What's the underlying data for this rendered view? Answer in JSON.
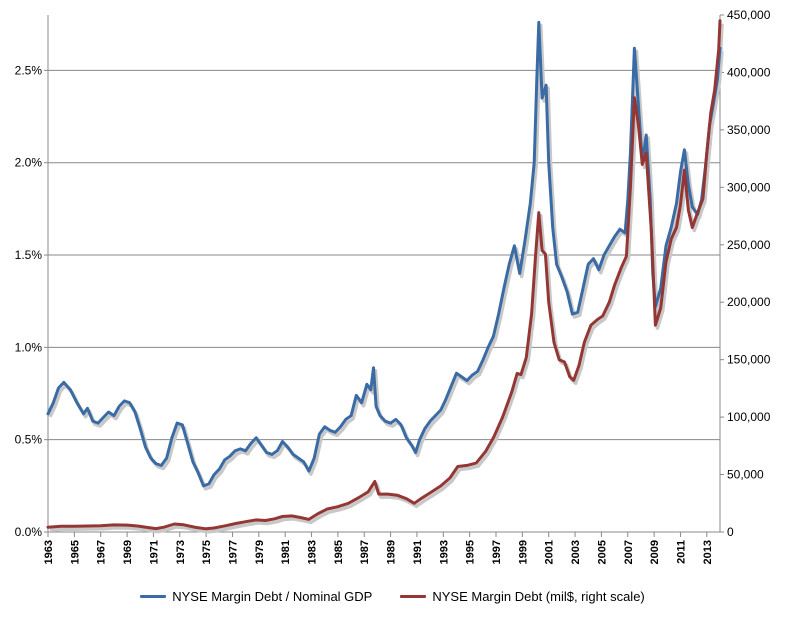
{
  "chart_data": {
    "type": "line",
    "title": "",
    "xlabel": "",
    "ylabel": "",
    "x_ticks": [
      "1963",
      "1965",
      "1967",
      "1969",
      "1971",
      "1973",
      "1975",
      "1977",
      "1979",
      "1981",
      "1983",
      "1985",
      "1987",
      "1989",
      "1991",
      "1993",
      "1995",
      "1997",
      "1999",
      "2001",
      "2003",
      "2005",
      "2007",
      "2009",
      "2011",
      "2013"
    ],
    "left_axis": {
      "ylim": [
        0,
        0.028
      ],
      "ticks": [
        0,
        0.005,
        0.01,
        0.015,
        0.02,
        0.025
      ],
      "tick_labels": [
        "0.0%",
        "0.5%",
        "1.0%",
        "1.5%",
        "2.0%",
        "2.5%"
      ]
    },
    "right_axis": {
      "ylim": [
        0,
        450000
      ],
      "ticks": [
        0,
        50000,
        100000,
        150000,
        200000,
        250000,
        300000,
        350000,
        400000,
        450000
      ],
      "tick_labels": [
        "0",
        "50,000",
        "100,000",
        "150,000",
        "200,000",
        "250,000",
        "300,000",
        "350,000",
        "400,000",
        "450,000"
      ]
    },
    "grid": true,
    "legend_position": "bottom",
    "series": [
      {
        "name": "NYSE Margin Debt / Nominal GDP",
        "axis": "left",
        "color": "#3A6BA5",
        "points": [
          [
            1963.0,
            0.0064
          ],
          [
            1963.4,
            0.007
          ],
          [
            1963.8,
            0.0078
          ],
          [
            1964.2,
            0.0081
          ],
          [
            1964.7,
            0.0077
          ],
          [
            1965.2,
            0.007
          ],
          [
            1965.7,
            0.0064
          ],
          [
            1966.0,
            0.0067
          ],
          [
            1966.4,
            0.006
          ],
          [
            1966.8,
            0.0059
          ],
          [
            1967.2,
            0.0062
          ],
          [
            1967.6,
            0.0065
          ],
          [
            1968.0,
            0.0063
          ],
          [
            1968.4,
            0.0068
          ],
          [
            1968.8,
            0.0071
          ],
          [
            1969.2,
            0.007
          ],
          [
            1969.6,
            0.0065
          ],
          [
            1970.0,
            0.0056
          ],
          [
            1970.4,
            0.0046
          ],
          [
            1970.8,
            0.004
          ],
          [
            1971.2,
            0.0037
          ],
          [
            1971.6,
            0.0036
          ],
          [
            1972.0,
            0.004
          ],
          [
            1972.4,
            0.0051
          ],
          [
            1972.8,
            0.0059
          ],
          [
            1973.2,
            0.0058
          ],
          [
            1973.6,
            0.0048
          ],
          [
            1974.0,
            0.0038
          ],
          [
            1974.4,
            0.0032
          ],
          [
            1974.8,
            0.0025
          ],
          [
            1975.2,
            0.0026
          ],
          [
            1975.6,
            0.0031
          ],
          [
            1976.0,
            0.0034
          ],
          [
            1976.4,
            0.0039
          ],
          [
            1976.8,
            0.0041
          ],
          [
            1977.2,
            0.0044
          ],
          [
            1977.6,
            0.0045
          ],
          [
            1978.0,
            0.0044
          ],
          [
            1978.4,
            0.0048
          ],
          [
            1978.8,
            0.0051
          ],
          [
            1979.2,
            0.0047
          ],
          [
            1979.6,
            0.0043
          ],
          [
            1980.0,
            0.0042
          ],
          [
            1980.4,
            0.0044
          ],
          [
            1980.8,
            0.0049
          ],
          [
            1981.2,
            0.0046
          ],
          [
            1981.6,
            0.0042
          ],
          [
            1982.0,
            0.004
          ],
          [
            1982.4,
            0.0038
          ],
          [
            1982.8,
            0.0033
          ],
          [
            1983.2,
            0.004
          ],
          [
            1983.6,
            0.0053
          ],
          [
            1984.0,
            0.0057
          ],
          [
            1984.4,
            0.0055
          ],
          [
            1984.8,
            0.0054
          ],
          [
            1985.2,
            0.0057
          ],
          [
            1985.6,
            0.0061
          ],
          [
            1986.0,
            0.0063
          ],
          [
            1986.4,
            0.0074
          ],
          [
            1986.8,
            0.007
          ],
          [
            1987.2,
            0.008
          ],
          [
            1987.5,
            0.0077
          ],
          [
            1987.7,
            0.0089
          ],
          [
            1987.9,
            0.0068
          ],
          [
            1988.2,
            0.0063
          ],
          [
            1988.6,
            0.006
          ],
          [
            1989.0,
            0.0059
          ],
          [
            1989.4,
            0.0061
          ],
          [
            1989.8,
            0.0058
          ],
          [
            1990.2,
            0.0051
          ],
          [
            1990.6,
            0.0047
          ],
          [
            1990.9,
            0.0043
          ],
          [
            1991.2,
            0.005
          ],
          [
            1991.6,
            0.0056
          ],
          [
            1992.0,
            0.006
          ],
          [
            1992.4,
            0.0063
          ],
          [
            1992.8,
            0.0066
          ],
          [
            1993.2,
            0.0072
          ],
          [
            1993.6,
            0.0079
          ],
          [
            1994.0,
            0.0086
          ],
          [
            1994.4,
            0.0084
          ],
          [
            1994.8,
            0.0082
          ],
          [
            1995.2,
            0.0085
          ],
          [
            1995.6,
            0.0087
          ],
          [
            1996.0,
            0.0093
          ],
          [
            1996.4,
            0.01
          ],
          [
            1996.8,
            0.0106
          ],
          [
            1997.2,
            0.0118
          ],
          [
            1997.6,
            0.0132
          ],
          [
            1998.0,
            0.0145
          ],
          [
            1998.4,
            0.0155
          ],
          [
            1998.8,
            0.014
          ],
          [
            1999.2,
            0.0158
          ],
          [
            1999.6,
            0.0178
          ],
          [
            1999.9,
            0.02
          ],
          [
            2000.1,
            0.0245
          ],
          [
            2000.25,
            0.0276
          ],
          [
            2000.5,
            0.0235
          ],
          [
            2000.8,
            0.0242
          ],
          [
            2001.0,
            0.02
          ],
          [
            2001.3,
            0.0165
          ],
          [
            2001.6,
            0.0145
          ],
          [
            2002.0,
            0.0138
          ],
          [
            2002.4,
            0.013
          ],
          [
            2002.8,
            0.0118
          ],
          [
            2003.2,
            0.0119
          ],
          [
            2003.6,
            0.0132
          ],
          [
            2004.0,
            0.0145
          ],
          [
            2004.4,
            0.0148
          ],
          [
            2004.8,
            0.0142
          ],
          [
            2005.2,
            0.015
          ],
          [
            2005.6,
            0.0155
          ],
          [
            2006.0,
            0.016
          ],
          [
            2006.4,
            0.0164
          ],
          [
            2006.8,
            0.0162
          ],
          [
            2007.0,
            0.018
          ],
          [
            2007.2,
            0.0205
          ],
          [
            2007.5,
            0.0262
          ],
          [
            2007.8,
            0.0232
          ],
          [
            2008.1,
            0.02
          ],
          [
            2008.4,
            0.0215
          ],
          [
            2008.7,
            0.018
          ],
          [
            2008.9,
            0.014
          ],
          [
            2009.1,
            0.0122
          ],
          [
            2009.5,
            0.0132
          ],
          [
            2009.9,
            0.0155
          ],
          [
            2010.3,
            0.0165
          ],
          [
            2010.7,
            0.0178
          ],
          [
            2011.0,
            0.0195
          ],
          [
            2011.3,
            0.0207
          ],
          [
            2011.6,
            0.0188
          ],
          [
            2011.9,
            0.0176
          ],
          [
            2012.3,
            0.0172
          ],
          [
            2012.6,
            0.018
          ],
          [
            2012.9,
            0.0198
          ],
          [
            2013.2,
            0.022
          ],
          [
            2013.5,
            0.0232
          ],
          [
            2013.8,
            0.0245
          ],
          [
            2014.0,
            0.0262
          ]
        ]
      },
      {
        "name": "NYSE Margin Debt (mil$, right scale)",
        "axis": "right",
        "color": "#943634",
        "points": [
          [
            1963.0,
            4200
          ],
          [
            1964.0,
            5000
          ],
          [
            1965.0,
            5000
          ],
          [
            1966.0,
            5200
          ],
          [
            1967.0,
            5500
          ],
          [
            1968.0,
            6200
          ],
          [
            1969.0,
            6000
          ],
          [
            1969.8,
            5200
          ],
          [
            1970.5,
            4000
          ],
          [
            1971.2,
            3000
          ],
          [
            1971.8,
            4200
          ],
          [
            1972.6,
            7000
          ],
          [
            1973.3,
            6300
          ],
          [
            1974.2,
            4000
          ],
          [
            1975.0,
            2800
          ],
          [
            1975.6,
            3500
          ],
          [
            1976.5,
            5500
          ],
          [
            1977.3,
            7500
          ],
          [
            1978.0,
            9000
          ],
          [
            1978.8,
            10500
          ],
          [
            1979.5,
            10000
          ],
          [
            1980.2,
            11500
          ],
          [
            1980.8,
            13500
          ],
          [
            1981.5,
            14000
          ],
          [
            1982.2,
            12500
          ],
          [
            1982.8,
            11000
          ],
          [
            1983.5,
            16000
          ],
          [
            1984.2,
            20000
          ],
          [
            1985.0,
            22000
          ],
          [
            1985.8,
            25000
          ],
          [
            1986.6,
            30000
          ],
          [
            1987.3,
            35000
          ],
          [
            1987.8,
            44000
          ],
          [
            1988.1,
            33000
          ],
          [
            1988.8,
            33000
          ],
          [
            1989.5,
            32000
          ],
          [
            1990.2,
            29000
          ],
          [
            1990.8,
            25000
          ],
          [
            1991.3,
            29000
          ],
          [
            1992.0,
            34000
          ],
          [
            1992.8,
            40000
          ],
          [
            1993.5,
            47000
          ],
          [
            1994.1,
            57000
          ],
          [
            1994.8,
            58000
          ],
          [
            1995.5,
            60000
          ],
          [
            1996.2,
            70000
          ],
          [
            1996.8,
            82000
          ],
          [
            1997.5,
            100000
          ],
          [
            1998.2,
            122000
          ],
          [
            1998.6,
            138000
          ],
          [
            1998.9,
            137000
          ],
          [
            1999.3,
            152000
          ],
          [
            1999.7,
            190000
          ],
          [
            2000.0,
            240000
          ],
          [
            2000.25,
            278000
          ],
          [
            2000.5,
            245000
          ],
          [
            2000.75,
            242000
          ],
          [
            2001.0,
            200000
          ],
          [
            2001.4,
            165000
          ],
          [
            2001.8,
            150000
          ],
          [
            2002.2,
            148000
          ],
          [
            2002.6,
            135000
          ],
          [
            2002.9,
            132000
          ],
          [
            2003.3,
            145000
          ],
          [
            2003.7,
            165000
          ],
          [
            2004.2,
            180000
          ],
          [
            2004.7,
            185000
          ],
          [
            2005.1,
            188000
          ],
          [
            2005.6,
            200000
          ],
          [
            2006.0,
            215000
          ],
          [
            2006.5,
            230000
          ],
          [
            2006.9,
            240000
          ],
          [
            2007.2,
            300000
          ],
          [
            2007.5,
            378000
          ],
          [
            2007.8,
            355000
          ],
          [
            2008.1,
            320000
          ],
          [
            2008.4,
            330000
          ],
          [
            2008.8,
            260000
          ],
          [
            2009.1,
            180000
          ],
          [
            2009.5,
            195000
          ],
          [
            2009.9,
            235000
          ],
          [
            2010.3,
            255000
          ],
          [
            2010.7,
            265000
          ],
          [
            2011.0,
            285000
          ],
          [
            2011.3,
            315000
          ],
          [
            2011.6,
            280000
          ],
          [
            2011.9,
            265000
          ],
          [
            2012.3,
            278000
          ],
          [
            2012.7,
            290000
          ],
          [
            2013.0,
            330000
          ],
          [
            2013.3,
            365000
          ],
          [
            2013.6,
            385000
          ],
          [
            2013.9,
            420000
          ],
          [
            2014.0,
            445000
          ]
        ]
      }
    ]
  }
}
